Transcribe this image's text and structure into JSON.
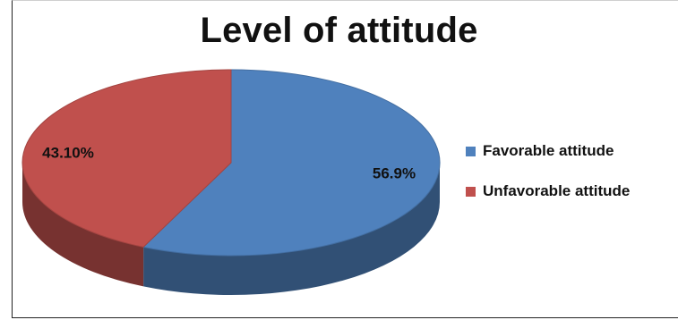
{
  "chart_data": {
    "type": "pie",
    "title": "Level of attitude",
    "slices": [
      {
        "name": "Favorable attitude",
        "value": 56.9,
        "label": "56.9%",
        "color": "#4f81bd"
      },
      {
        "name": "Unfavorable attitude",
        "value": 43.1,
        "label": "43.10%",
        "color": "#c0504d"
      }
    ],
    "legend_placement": "right",
    "style": "3d"
  }
}
